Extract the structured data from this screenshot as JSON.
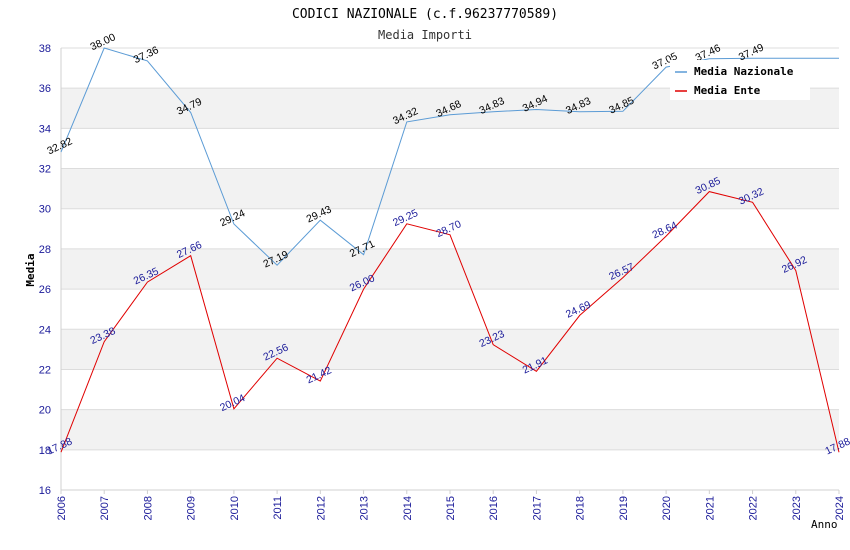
{
  "chart_data": {
    "type": "line",
    "title": "CODICI NAZIONALE (c.f.96237770589)",
    "subtitle": "Media Importi",
    "xlabel": "Anno",
    "ylabel": "Media",
    "ylim": [
      16,
      38
    ],
    "yticks": [
      16,
      18,
      20,
      22,
      24,
      26,
      28,
      30,
      32,
      34,
      36,
      38
    ],
    "x": [
      "2006",
      "2007",
      "2008",
      "2009",
      "2010",
      "2011",
      "2012",
      "2013",
      "2014",
      "2015",
      "2016",
      "2017",
      "2018",
      "2019",
      "2020",
      "2021",
      "2022",
      "2023",
      "2024"
    ],
    "series": [
      {
        "name": "Media Nazionale",
        "color": "#5b9bd5",
        "values": [
          32.82,
          38.0,
          37.36,
          34.79,
          29.24,
          27.19,
          29.43,
          27.71,
          34.32,
          34.68,
          34.83,
          34.94,
          34.83,
          34.85,
          37.05,
          37.46,
          37.49,
          37.49,
          37.49
        ],
        "labels": [
          "32.82",
          "38.00",
          "37.36",
          "34.79",
          "29.24",
          "27.19",
          "29.43",
          "27.71",
          "34.32",
          "34.68",
          "34.83",
          "34.94",
          "34.83",
          "34.85",
          "37.05",
          "37.46",
          "37.49",
          "",
          ""
        ]
      },
      {
        "name": "Media Ente",
        "color": "#e00000",
        "values": [
          17.88,
          23.38,
          26.35,
          27.66,
          20.04,
          22.56,
          21.42,
          26.0,
          29.25,
          28.7,
          23.23,
          21.91,
          24.69,
          26.57,
          28.64,
          30.85,
          30.32,
          26.92,
          17.88
        ],
        "labels": [
          "17.88",
          "23.38",
          "26.35",
          "27.66",
          "20.04",
          "22.56",
          "21.42",
          "26.00",
          "29.25",
          "28.70",
          "23.23",
          "21.91",
          "24.69",
          "26.57",
          "28.64",
          "30.85",
          "30.32",
          "26.92",
          "17.88"
        ]
      }
    ],
    "grid": true,
    "legend": "top-right"
  }
}
